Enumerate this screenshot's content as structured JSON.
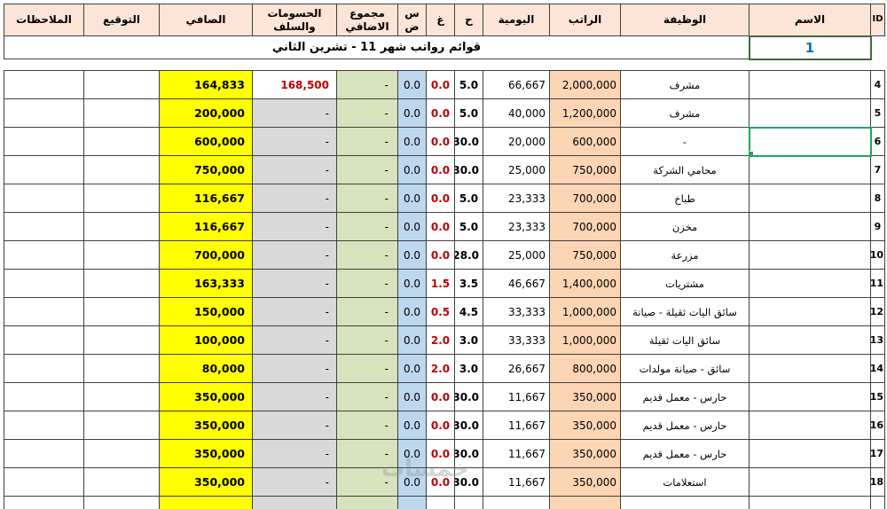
{
  "title": "قوائم رواتب شهر 11 - تشرين الثاني",
  "corner_value": "1",
  "watermark": "خمسات",
  "colors": {
    "header_bg": "#fce4d6",
    "salary_bg": "#fcd5b4",
    "sd_bg": "#bdd7ee",
    "overtime_bg": "#d6e3bc",
    "deductions_bg": "#d9d9d9",
    "net_bg": "#ffff00",
    "negative_red": "#c00000",
    "corner_blue": "#0070c0",
    "selection_green": "#21a366",
    "grid_line": "#404040"
  },
  "columns": [
    {
      "key": "id",
      "label": "ID"
    },
    {
      "key": "name",
      "label": "الاسم"
    },
    {
      "key": "job",
      "label": "الوظيفة"
    },
    {
      "key": "salary",
      "label": "الراتب"
    },
    {
      "key": "daily",
      "label": "اليومية"
    },
    {
      "key": "h",
      "label": "ح"
    },
    {
      "key": "gh",
      "label": "غ"
    },
    {
      "key": "sd",
      "label": "س\nض"
    },
    {
      "key": "overtime",
      "label": "مجموع\nالاضافي"
    },
    {
      "key": "deductions",
      "label": "الحسومات\nوالسلف"
    },
    {
      "key": "net",
      "label": "الصافي"
    },
    {
      "key": "signature",
      "label": "التوقيع"
    },
    {
      "key": "notes",
      "label": "الملاحظات"
    }
  ],
  "rows": [
    {
      "id": "4",
      "name": "",
      "job": "مشرف",
      "salary": "2,000,000",
      "daily": "66,667",
      "h": "5.0",
      "gh": "0.0",
      "sd": "0.0",
      "overtime": "-",
      "deductions": "168,500",
      "deductions_red": true,
      "net": "164,833",
      "signature": "",
      "notes": ""
    },
    {
      "id": "5",
      "name": "",
      "job": "مشرف",
      "salary": "1,200,000",
      "daily": "40,000",
      "h": "5.0",
      "gh": "0.0",
      "sd": "0.0",
      "overtime": "-",
      "deductions": "-",
      "net": "200,000",
      "signature": "",
      "notes": ""
    },
    {
      "id": "6",
      "name": "",
      "job": "-",
      "salary": "600,000",
      "daily": "20,000",
      "h": "30.0",
      "gh": "0.0",
      "sd": "0.0",
      "overtime": "-",
      "deductions": "-",
      "net": "600,000",
      "signature": "",
      "notes": "",
      "selected": "name"
    },
    {
      "id": "7",
      "name": "",
      "job": "محامي الشركة",
      "salary": "750,000",
      "daily": "25,000",
      "h": "30.0",
      "gh": "0.0",
      "sd": "0.0",
      "overtime": "-",
      "deductions": "-",
      "net": "750,000",
      "signature": "",
      "notes": ""
    },
    {
      "id": "8",
      "name": "",
      "job": "طباخ",
      "salary": "700,000",
      "daily": "23,333",
      "h": "5.0",
      "gh": "0.0",
      "sd": "0.0",
      "overtime": "-",
      "deductions": "-",
      "net": "116,667",
      "signature": "",
      "notes": ""
    },
    {
      "id": "9",
      "name": "",
      "job": "مخزن",
      "salary": "700,000",
      "daily": "23,333",
      "h": "5.0",
      "gh": "0.0",
      "sd": "0.0",
      "overtime": "-",
      "deductions": "-",
      "net": "116,667",
      "signature": "",
      "notes": ""
    },
    {
      "id": "10",
      "name": "",
      "job": "مزرعة",
      "salary": "750,000",
      "daily": "25,000",
      "h": "28.0",
      "gh": "0.0",
      "sd": "0.0",
      "overtime": "-",
      "deductions": "-",
      "net": "700,000",
      "signature": "",
      "notes": ""
    },
    {
      "id": "11",
      "name": "",
      "job": "مشتريات",
      "salary": "1,400,000",
      "daily": "46,667",
      "h": "3.5",
      "gh": "1.5",
      "sd": "0.0",
      "overtime": "-",
      "deductions": "-",
      "net": "163,333",
      "signature": "",
      "notes": ""
    },
    {
      "id": "12",
      "name": "",
      "job": "سائق اليات ثقيلة - صيانة",
      "salary": "1,000,000",
      "daily": "33,333",
      "h": "4.5",
      "gh": "0.5",
      "sd": "0.0",
      "overtime": "-",
      "deductions": "-",
      "net": "150,000",
      "signature": "",
      "notes": ""
    },
    {
      "id": "13",
      "name": "",
      "job": "سائق اليات ثقيلة",
      "salary": "1,000,000",
      "daily": "33,333",
      "h": "3.0",
      "gh": "2.0",
      "sd": "0.0",
      "overtime": "-",
      "deductions": "-",
      "net": "100,000",
      "signature": "",
      "notes": ""
    },
    {
      "id": "14",
      "name": "",
      "job": "سائق - صيانة مولدات",
      "salary": "800,000",
      "daily": "26,667",
      "h": "3.0",
      "gh": "2.0",
      "sd": "0.0",
      "overtime": "-",
      "deductions": "-",
      "net": "80,000",
      "signature": "",
      "notes": ""
    },
    {
      "id": "15",
      "name": "",
      "job": "حارس - معمل قديم",
      "salary": "350,000",
      "daily": "11,667",
      "h": "30.0",
      "gh": "0.0",
      "sd": "0.0",
      "overtime": "-",
      "deductions": "-",
      "net": "350,000",
      "signature": "",
      "notes": ""
    },
    {
      "id": "16",
      "name": "",
      "job": "حارس - معمل قديم",
      "salary": "350,000",
      "daily": "11,667",
      "h": "30.0",
      "gh": "0.0",
      "sd": "0.0",
      "overtime": "-",
      "deductions": "-",
      "net": "350,000",
      "signature": "",
      "notes": ""
    },
    {
      "id": "17",
      "name": "",
      "job": "حارس - معمل قديم",
      "salary": "350,000",
      "daily": "11,667",
      "h": "30.0",
      "gh": "0.0",
      "sd": "0.0",
      "overtime": "-",
      "deductions": "-",
      "net": "350,000",
      "signature": "",
      "notes": ""
    },
    {
      "id": "18",
      "name": "",
      "job": "استعلامات",
      "salary": "350,000",
      "daily": "11,667",
      "h": "30.0",
      "gh": "0.0",
      "sd": "0.0",
      "overtime": "-",
      "deductions": "-",
      "net": "350,000",
      "signature": "",
      "notes": ""
    },
    {
      "id": "",
      "name": "",
      "job": "",
      "salary": "",
      "daily": "",
      "h": "",
      "gh": "",
      "sd": "",
      "overtime": "",
      "deductions": "",
      "net": "",
      "signature": "",
      "notes": "",
      "partial": true
    }
  ]
}
